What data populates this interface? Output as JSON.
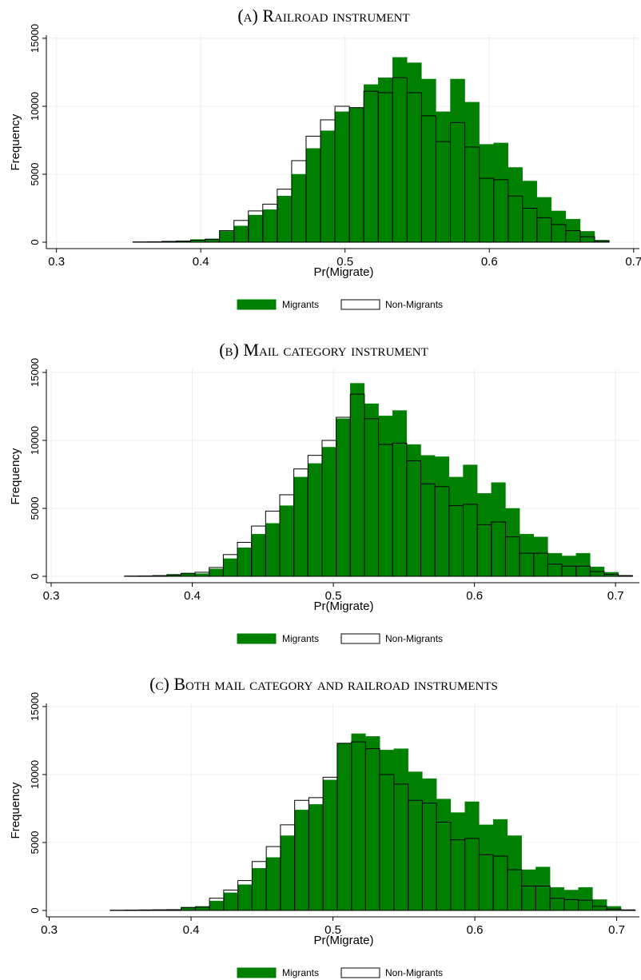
{
  "chart_data": [
    {
      "type": "histogram",
      "title": "(a) Railroad instrument",
      "xlabel": "Pr(Migrate)",
      "ylabel": "Frequency",
      "bins": [
        0.353,
        0.363,
        0.373,
        0.383,
        0.393,
        0.403,
        0.413,
        0.423,
        0.433,
        0.443,
        0.453,
        0.463,
        0.473,
        0.483,
        0.493,
        0.503,
        0.513,
        0.523,
        0.533,
        0.543,
        0.553,
        0.563,
        0.573,
        0.583,
        0.593,
        0.603,
        0.613,
        0.623,
        0.633,
        0.643,
        0.653,
        0.663,
        0.673,
        0.683
      ],
      "series": [
        {
          "name": "Migrants",
          "color": "#008000",
          "values": [
            30,
            50,
            80,
            100,
            200,
            250,
            800,
            1200,
            2000,
            2400,
            3400,
            5000,
            6900,
            8200,
            9600,
            9900,
            11600,
            12100,
            13600,
            13200,
            12000,
            9600,
            12000,
            10300,
            7200,
            7300,
            5500,
            4500,
            3300,
            2300,
            1700,
            800,
            150
          ]
        },
        {
          "name": "Non-Migrants",
          "color": "#ffffff",
          "values": [
            20,
            30,
            60,
            80,
            150,
            200,
            850,
            1600,
            2300,
            2800,
            3900,
            6000,
            7800,
            9000,
            10000,
            9900,
            11100,
            11000,
            12100,
            11000,
            9300,
            7400,
            8800,
            7000,
            4700,
            4600,
            3400,
            2500,
            1800,
            1300,
            850,
            400,
            100
          ]
        }
      ],
      "xlim": [
        0.293,
        0.704
      ],
      "ylim": [
        -470,
        15230
      ],
      "xticks": [
        0.3,
        0.4,
        0.5,
        0.6,
        0.7
      ],
      "yticks": [
        0,
        5000,
        10000,
        15000
      ],
      "grid": true,
      "legend": "bottom"
    },
    {
      "type": "histogram",
      "title": "(b) Mail category instrument",
      "xlabel": "Pr(Migrate)",
      "ylabel": "Frequency",
      "bins": [
        0.352,
        0.362,
        0.372,
        0.382,
        0.392,
        0.402,
        0.412,
        0.422,
        0.432,
        0.442,
        0.452,
        0.462,
        0.472,
        0.482,
        0.492,
        0.502,
        0.512,
        0.522,
        0.532,
        0.542,
        0.552,
        0.562,
        0.572,
        0.582,
        0.592,
        0.602,
        0.612,
        0.622,
        0.632,
        0.642,
        0.652,
        0.662,
        0.672,
        0.682,
        0.692,
        0.702,
        0.712
      ],
      "series": [
        {
          "name": "Migrants",
          "color": "#008000",
          "values": [
            30,
            40,
            70,
            150,
            250,
            200,
            550,
            1300,
            2100,
            3100,
            3900,
            5200,
            7300,
            8300,
            9500,
            11600,
            14200,
            12700,
            11800,
            12200,
            9700,
            8900,
            8800,
            7300,
            8200,
            6100,
            6900,
            5000,
            3100,
            2900,
            1700,
            1500,
            1700,
            700,
            300,
            80
          ]
        },
        {
          "name": "Non-Migrants",
          "color": "#ffffff",
          "values": [
            20,
            30,
            50,
            100,
            200,
            300,
            650,
            1600,
            2500,
            3700,
            4800,
            6000,
            7900,
            8900,
            10000,
            11700,
            13400,
            11600,
            9700,
            9800,
            8500,
            6800,
            6600,
            5200,
            5300,
            3800,
            4000,
            2900,
            1700,
            1700,
            900,
            750,
            750,
            350,
            150,
            50
          ]
        }
      ],
      "xlim": [
        0.2966,
        0.7169
      ],
      "ylim": [
        -470,
        15230
      ],
      "xticks": [
        0.3,
        0.4,
        0.5,
        0.6,
        0.7
      ],
      "yticks": [
        0,
        5000,
        10000,
        15000
      ],
      "grid": true,
      "legend": "bottom"
    },
    {
      "type": "histogram",
      "title": "(c) Both mail category and railroad instruments",
      "xlabel": "Pr(Migrate)",
      "ylabel": "Frequency",
      "bins": [
        0.343,
        0.353,
        0.363,
        0.373,
        0.383,
        0.393,
        0.403,
        0.413,
        0.423,
        0.433,
        0.443,
        0.453,
        0.463,
        0.473,
        0.483,
        0.493,
        0.503,
        0.513,
        0.523,
        0.533,
        0.543,
        0.553,
        0.563,
        0.573,
        0.583,
        0.593,
        0.603,
        0.613,
        0.623,
        0.633,
        0.643,
        0.653,
        0.663,
        0.673,
        0.683,
        0.693,
        0.703,
        0.713
      ],
      "series": [
        {
          "name": "Migrants",
          "color": "#008000",
          "values": [
            20,
            30,
            40,
            50,
            60,
            250,
            300,
            700,
            1300,
            1900,
            3100,
            3900,
            5500,
            7400,
            7800,
            9600,
            12300,
            13000,
            12800,
            11800,
            11900,
            10200,
            9700,
            8200,
            7200,
            8000,
            6300,
            6700,
            5500,
            3000,
            3200,
            1700,
            1500,
            1700,
            800,
            300,
            60
          ]
        },
        {
          "name": "Non-Migrants",
          "color": "#ffffff",
          "values": [
            20,
            30,
            40,
            50,
            60,
            200,
            250,
            900,
            1500,
            2200,
            3600,
            4700,
            6300,
            8100,
            8300,
            9800,
            12300,
            12400,
            11900,
            10000,
            9300,
            8100,
            7900,
            6500,
            5200,
            5300,
            4100,
            4000,
            3000,
            1800,
            1800,
            900,
            800,
            750,
            300,
            100,
            40
          ]
        }
      ],
      "xlim": [
        0.298,
        0.716
      ],
      "ylim": [
        -470,
        15230
      ],
      "xticks": [
        0.3,
        0.4,
        0.5,
        0.6,
        0.7
      ],
      "yticks": [
        0,
        5000,
        10000,
        15000
      ],
      "grid": true,
      "legend": "bottom"
    }
  ]
}
